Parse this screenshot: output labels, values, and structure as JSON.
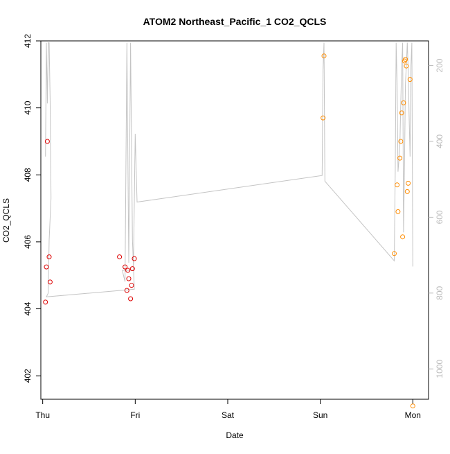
{
  "chart_data": {
    "type": "scatter",
    "title": "ATOM2 Northeast_Pacific_1 CO2_QCLS",
    "xlabel": "Date",
    "ylabel": "CO2_QCLS",
    "x_ticks": [
      "Thu",
      "Fri",
      "Sat",
      "Sun",
      "Mon"
    ],
    "y_ticks": [
      402,
      404,
      406,
      408,
      410,
      412
    ],
    "y2_ticks": [
      200,
      400,
      600,
      800,
      1000
    ],
    "xlim": [
      -0.02,
      4.17
    ],
    "ylim": [
      401.3,
      412.0
    ],
    "y2lim": [
      1080,
      135
    ],
    "grid": false,
    "series": [
      {
        "color": "#dd0000",
        "points": [
          [
            0.03,
            404.2
          ],
          [
            0.04,
            405.25
          ],
          [
            0.05,
            409.0
          ],
          [
            0.07,
            405.55
          ],
          [
            0.08,
            404.8
          ],
          [
            0.83,
            405.55
          ],
          [
            0.89,
            405.25
          ],
          [
            0.91,
            404.55
          ],
          [
            0.92,
            405.15
          ],
          [
            0.93,
            404.9
          ],
          [
            0.95,
            404.3
          ],
          [
            0.96,
            404.7
          ],
          [
            0.97,
            405.2
          ],
          [
            0.99,
            405.5
          ]
        ]
      },
      {
        "color": "#ff8c00",
        "points": [
          [
            3.03,
            409.7
          ],
          [
            3.04,
            411.55
          ],
          [
            3.8,
            405.65
          ],
          [
            3.83,
            407.7
          ],
          [
            3.84,
            406.9
          ],
          [
            3.86,
            408.5
          ],
          [
            3.87,
            409.0
          ],
          [
            3.88,
            409.85
          ],
          [
            3.89,
            406.15
          ],
          [
            3.9,
            410.15
          ],
          [
            3.91,
            411.4
          ],
          [
            3.92,
            411.45
          ],
          [
            3.93,
            411.25
          ],
          [
            3.94,
            407.5
          ],
          [
            3.95,
            407.75
          ],
          [
            3.97,
            410.85
          ],
          [
            4.0,
            401.1
          ]
        ]
      }
    ],
    "altitude_path": [
      [
        0.03,
        440
      ],
      [
        0.04,
        140
      ],
      [
        0.05,
        300
      ],
      [
        0.06,
        140
      ],
      [
        0.07,
        140
      ],
      [
        0.08,
        290
      ],
      [
        0.09,
        550
      ],
      [
        0.07,
        660
      ],
      [
        0.06,
        800
      ],
      [
        0.04,
        810
      ],
      [
        0.99,
        790
      ],
      [
        0.97,
        660
      ],
      [
        0.95,
        140
      ],
      [
        0.93,
        720
      ],
      [
        0.91,
        140
      ],
      [
        0.89,
        770
      ],
      [
        0.86,
        740
      ],
      [
        0.98,
        740
      ],
      [
        1.0,
        380
      ],
      [
        1.02,
        560
      ],
      [
        3.02,
        490
      ],
      [
        3.03,
        210
      ],
      [
        3.04,
        140
      ],
      [
        3.05,
        505
      ],
      [
        3.8,
        715
      ],
      [
        3.81,
        480
      ],
      [
        3.82,
        140
      ],
      [
        3.83,
        250
      ],
      [
        3.84,
        480
      ],
      [
        3.85,
        450
      ],
      [
        3.86,
        410
      ],
      [
        3.87,
        300
      ],
      [
        3.88,
        200
      ],
      [
        3.89,
        140
      ],
      [
        3.9,
        640
      ],
      [
        3.91,
        460
      ],
      [
        3.92,
        250
      ],
      [
        3.93,
        200
      ],
      [
        3.94,
        140
      ],
      [
        3.95,
        210
      ],
      [
        3.96,
        330
      ],
      [
        3.97,
        440
      ],
      [
        3.98,
        200
      ],
      [
        3.99,
        140
      ],
      [
        4.0,
        730
      ]
    ]
  }
}
